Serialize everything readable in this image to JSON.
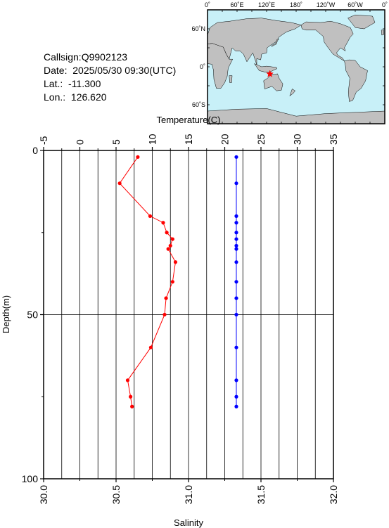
{
  "info": {
    "callsign": "Callsign:Q9902123",
    "date": "Date:  2025/05/30 09:30(UTC)",
    "lat": "Lat.:  -11.300",
    "lon": "Lon.:  126.620"
  },
  "map": {
    "top_labels": [
      "0˚",
      "60˚E",
      "120˚E",
      "180˚",
      "120˚W",
      "60˚W",
      "0˚"
    ],
    "lat_labels": [
      "60˚N",
      "0˚",
      "60˚S"
    ],
    "land_color": "#c0c0c0",
    "ocean_color": "#c8f0f8",
    "marker_color": "#ff0000",
    "station": {
      "lon": 126.62,
      "lat": -11.3
    }
  },
  "chart_data": {
    "type": "line",
    "xlabel_top": "Temperature(C)",
    "xlabel_bottom": "Salinity",
    "ylabel": "Depth(m)",
    "temperature_range": [
      -5,
      35
    ],
    "temperature_ticks": [
      "-5",
      "0",
      "5",
      "10",
      "15",
      "20",
      "25",
      "30",
      "35"
    ],
    "salinity_range": [
      30.0,
      32.0
    ],
    "salinity_ticks": [
      "30.0",
      "30.5",
      "31.0",
      "31.5",
      "32.0"
    ],
    "depth_range": [
      0,
      100
    ],
    "depth_ticks": [
      "0",
      "50",
      "100"
    ],
    "temperature_color": "#ff0000",
    "salinity_color": "#0000ff",
    "temperature": {
      "depth": [
        2,
        10,
        20,
        22,
        25,
        27,
        29,
        30,
        34,
        40,
        45,
        50,
        60,
        70,
        75,
        78
      ],
      "values": [
        8.0,
        5.5,
        9.7,
        11.5,
        12.0,
        12.8,
        12.5,
        12.2,
        13.2,
        12.8,
        11.9,
        11.7,
        9.8,
        6.6,
        7.0,
        7.2
      ]
    },
    "salinity": {
      "depth": [
        2,
        10,
        20,
        22,
        25,
        27,
        29,
        30,
        34,
        40,
        45,
        50,
        60,
        70,
        75,
        78
      ],
      "values": [
        31.33,
        31.33,
        31.33,
        31.33,
        31.33,
        31.33,
        31.33,
        31.33,
        31.33,
        31.33,
        31.33,
        31.33,
        31.33,
        31.33,
        31.33,
        31.33
      ]
    }
  }
}
